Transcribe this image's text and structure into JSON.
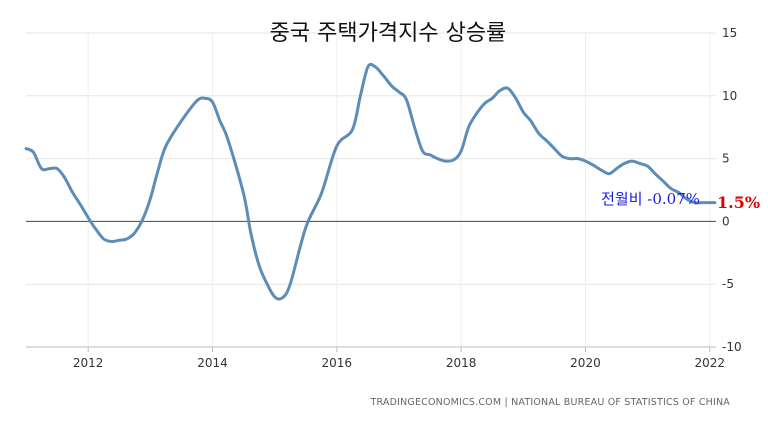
{
  "chart_data": {
    "type": "line",
    "title": "중국 주택가격지수 상승률",
    "source": "TRADINGECONOMICS.COM | NATIONAL BUREAU OF STATISTICS OF CHINA",
    "annotations": {
      "mom_label": "전월비 -0.07%",
      "last_value_label": "1.5%"
    },
    "xlabel": "",
    "ylabel": "",
    "x_tick_labels": [
      "2012",
      "2014",
      "2016",
      "2018",
      "2020",
      "2022"
    ],
    "y_tick_labels": [
      "15",
      "10",
      "5",
      "0",
      "-5",
      "-10"
    ],
    "xlim": [
      2011.0,
      2022.1
    ],
    "ylim": [
      -10,
      15
    ],
    "grid": true,
    "line_color": "#5b8db8",
    "series": [
      {
        "x": [
          2011.0,
          2011.12,
          2011.25,
          2011.38,
          2011.5,
          2011.62,
          2011.75,
          2011.88,
          2012.0,
          2012.12,
          2012.25,
          2012.38,
          2012.5,
          2012.62,
          2012.75,
          2012.88,
          2013.0,
          2013.12,
          2013.25,
          2013.5,
          2013.75,
          2013.88,
          2014.0,
          2014.12,
          2014.25,
          2014.5,
          2014.62,
          2014.75,
          2014.88,
          2015.0,
          2015.12,
          2015.25,
          2015.5,
          2015.75,
          2016.0,
          2016.25,
          2016.38,
          2016.5,
          2016.62,
          2016.75,
          2016.88,
          2017.0,
          2017.12,
          2017.25,
          2017.38,
          2017.5,
          2017.62,
          2017.75,
          2017.88,
          2018.0,
          2018.12,
          2018.25,
          2018.38,
          2018.5,
          2018.62,
          2018.75,
          2018.88,
          2019.0,
          2019.12,
          2019.25,
          2019.38,
          2019.5,
          2019.62,
          2019.75,
          2019.88,
          2020.0,
          2020.12,
          2020.25,
          2020.38,
          2020.5,
          2020.62,
          2020.75,
          2020.88,
          2021.0,
          2021.12,
          2021.25,
          2021.38,
          2021.5,
          2021.62,
          2021.75,
          2021.88,
          2022.0,
          2022.08
        ],
        "y": [
          5.8,
          5.5,
          4.2,
          4.2,
          4.2,
          3.5,
          2.3,
          1.3,
          0.3,
          -0.6,
          -1.4,
          -1.6,
          -1.5,
          -1.4,
          -0.9,
          0.2,
          1.8,
          4.0,
          6.0,
          8.0,
          9.6,
          9.8,
          9.5,
          8.0,
          6.5,
          2.2,
          -1.0,
          -3.5,
          -5.0,
          -6.0,
          -6.1,
          -5.0,
          -0.5,
          2.2,
          6.0,
          7.3,
          10.0,
          12.3,
          12.3,
          11.6,
          10.8,
          10.3,
          9.7,
          7.5,
          5.6,
          5.3,
          5.0,
          4.8,
          4.9,
          5.6,
          7.5,
          8.6,
          9.4,
          9.8,
          10.4,
          10.6,
          9.8,
          8.7,
          8.0,
          7.0,
          6.4,
          5.8,
          5.2,
          5.0,
          5.0,
          4.8,
          4.5,
          4.1,
          3.8,
          4.2,
          4.6,
          4.8,
          4.6,
          4.4,
          3.8,
          3.2,
          2.6,
          2.3,
          1.8,
          1.5,
          1.5,
          1.5,
          1.5
        ]
      }
    ]
  }
}
